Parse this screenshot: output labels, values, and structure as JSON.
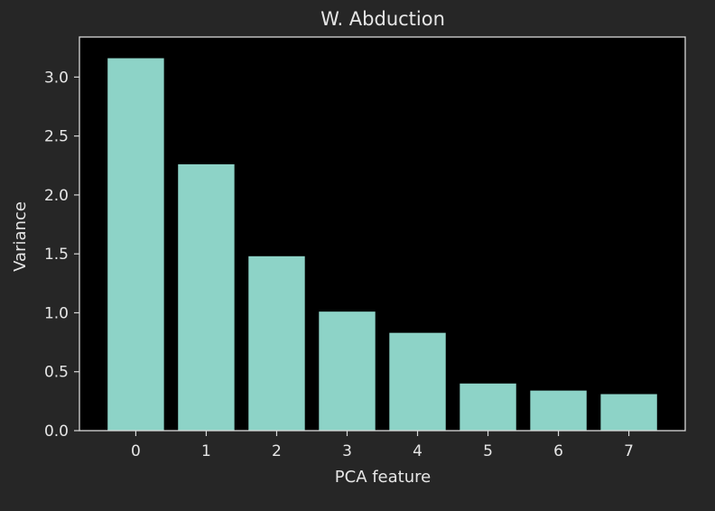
{
  "chart_data": {
    "type": "bar",
    "title": "W. Abduction",
    "xlabel": "PCA feature",
    "ylabel": "Variance",
    "categories": [
      "0",
      "1",
      "2",
      "3",
      "4",
      "5",
      "6",
      "7"
    ],
    "values": [
      3.16,
      2.26,
      1.48,
      1.01,
      0.83,
      0.4,
      0.34,
      0.31
    ],
    "ylim": [
      0,
      3.34
    ],
    "yticks": [
      "0.0",
      "0.5",
      "1.0",
      "1.5",
      "2.0",
      "2.5",
      "3.0"
    ],
    "grid": false,
    "colors": {
      "figure_background": "#262626",
      "plot_background": "#000000",
      "bar": "#8dd3c7",
      "axes": "#d9d9d9",
      "text": "#e6e6e6"
    }
  }
}
